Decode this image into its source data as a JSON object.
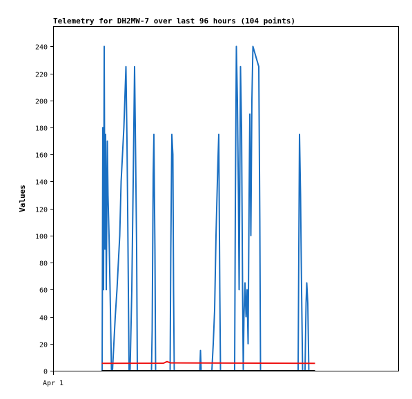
{
  "chart_data": {
    "type": "line",
    "title": "Telemetry for DH2MW-7 over last 96 hours (104 points)",
    "xlabel": "",
    "ylabel": "Values",
    "x_tick_labels": [
      "Apr 1"
    ],
    "ylim": [
      0,
      255
    ],
    "y_ticks": [
      0,
      20,
      40,
      60,
      80,
      100,
      120,
      140,
      160,
      180,
      200,
      220,
      240
    ],
    "grid": false,
    "x_domain": [
      0,
      100
    ],
    "series": [
      {
        "color": "#1a6fc2",
        "points": [
          [
            14.2,
            0
          ],
          [
            14.4,
            180
          ],
          [
            14.6,
            60
          ],
          [
            14.8,
            240
          ],
          [
            15.0,
            90
          ],
          [
            15.2,
            175
          ],
          [
            15.4,
            60
          ],
          [
            15.7,
            170
          ],
          [
            15.9,
            130
          ],
          [
            16.2,
            100
          ],
          [
            16.5,
            60
          ],
          [
            16.9,
            0
          ],
          [
            17.2,
            0
          ],
          [
            17.6,
            20
          ],
          [
            18.0,
            40
          ],
          [
            18.5,
            60
          ],
          [
            18.9,
            80
          ],
          [
            19.3,
            100
          ],
          [
            19.7,
            140
          ],
          [
            20.1,
            160
          ],
          [
            20.5,
            180
          ],
          [
            20.9,
            210
          ],
          [
            21.1,
            225
          ],
          [
            21.4,
            170
          ],
          [
            21.6,
            120
          ],
          [
            21.8,
            60
          ],
          [
            22.0,
            0
          ],
          [
            22.3,
            0
          ],
          [
            22.8,
            60
          ],
          [
            23.2,
            140
          ],
          [
            23.6,
            225
          ],
          [
            23.9,
            160
          ],
          [
            24.2,
            90
          ],
          [
            24.4,
            0
          ],
          [
            28.5,
            0
          ],
          [
            28.7,
            30
          ],
          [
            29.0,
            145
          ],
          [
            29.2,
            175
          ],
          [
            29.5,
            90
          ],
          [
            29.7,
            0
          ],
          [
            33.9,
            0
          ],
          [
            34.1,
            90
          ],
          [
            34.4,
            175
          ],
          [
            34.7,
            160
          ],
          [
            34.9,
            60
          ],
          [
            35.1,
            0
          ],
          [
            42.5,
            0
          ],
          [
            42.7,
            15
          ],
          [
            42.9,
            0
          ],
          [
            46.0,
            0
          ],
          [
            46.4,
            20
          ],
          [
            46.8,
            45
          ],
          [
            47.2,
            100
          ],
          [
            47.7,
            150
          ],
          [
            48.0,
            175
          ],
          [
            48.3,
            60
          ],
          [
            48.5,
            0
          ],
          [
            52.6,
            0
          ],
          [
            52.8,
            120
          ],
          [
            53.1,
            240
          ],
          [
            53.4,
            200
          ],
          [
            53.7,
            130
          ],
          [
            53.9,
            60
          ],
          [
            54.3,
            225
          ],
          [
            54.6,
            180
          ],
          [
            54.9,
            60
          ],
          [
            55.1,
            0
          ],
          [
            55.3,
            40
          ],
          [
            55.6,
            65
          ],
          [
            55.9,
            40
          ],
          [
            56.2,
            60
          ],
          [
            56.5,
            20
          ],
          [
            56.8,
            130
          ],
          [
            57.0,
            190
          ],
          [
            57.3,
            100
          ],
          [
            57.6,
            200
          ],
          [
            57.9,
            240
          ],
          [
            59.6,
            225
          ],
          [
            59.9,
            110
          ],
          [
            60.1,
            0
          ],
          [
            71.0,
            0
          ],
          [
            71.2,
            90
          ],
          [
            71.4,
            175
          ],
          [
            71.7,
            130
          ],
          [
            72.0,
            60
          ],
          [
            72.3,
            0
          ],
          [
            73.0,
            0
          ],
          [
            73.3,
            50
          ],
          [
            73.5,
            65
          ],
          [
            73.8,
            50
          ],
          [
            74.1,
            0
          ]
        ]
      },
      {
        "color": "#ee1111",
        "points": [
          [
            14.1,
            5.5
          ],
          [
            32.0,
            5.6
          ],
          [
            33.0,
            6.8
          ],
          [
            34.0,
            5.8
          ],
          [
            75.9,
            5.5
          ]
        ]
      },
      {
        "color": "#000000",
        "points": [
          [
            14.1,
            0
          ],
          [
            75.9,
            0
          ]
        ]
      }
    ]
  }
}
